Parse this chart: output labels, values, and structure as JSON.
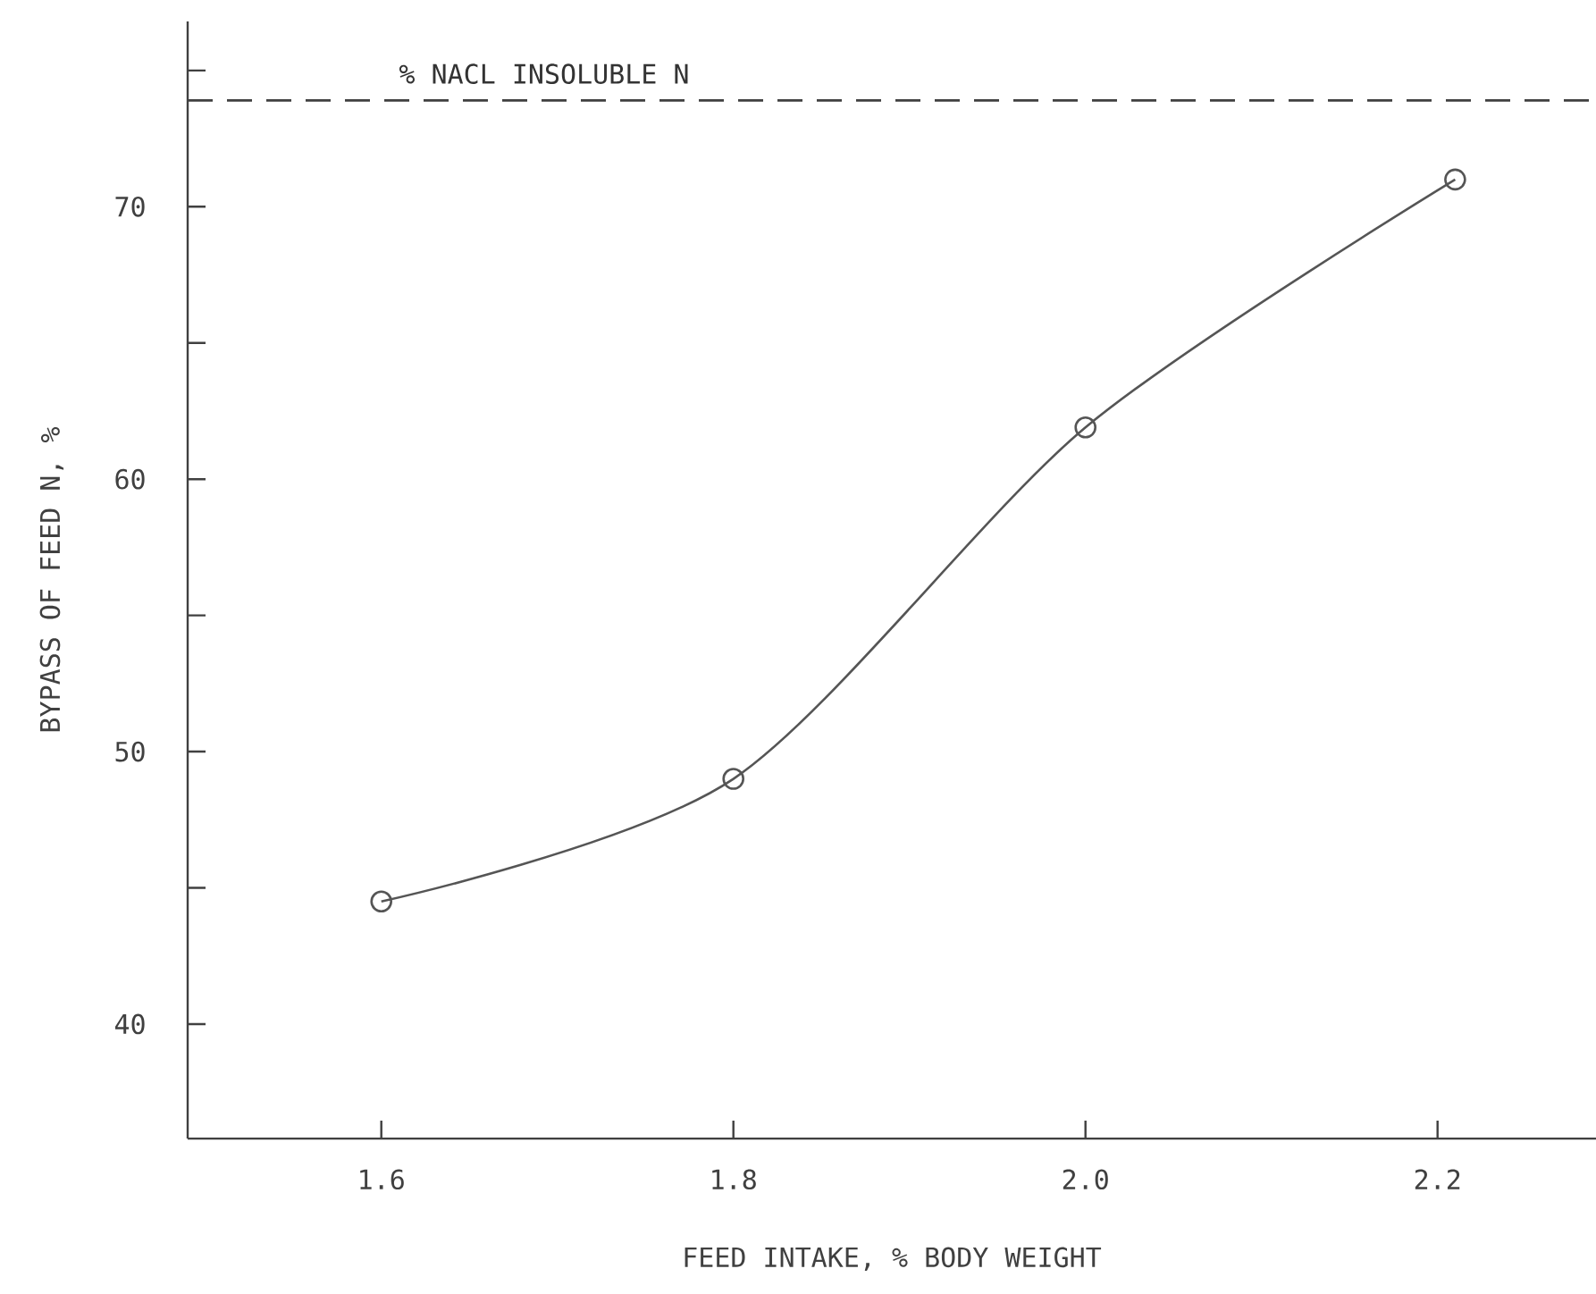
{
  "chart_data": {
    "type": "line",
    "xlabel": "FEED INTAKE, % BODY WEIGHT",
    "ylabel": "BYPASS OF FEED N, %",
    "x": [
      1.6,
      1.8,
      2.0,
      2.21
    ],
    "series": [
      {
        "color": "#555555",
        "values": [
          44.5,
          49.0,
          61.9,
          71.0
        ]
      }
    ],
    "xlim": [
      1.49,
      2.29
    ],
    "ylim": [
      35.8,
      76.8
    ],
    "xticks": [
      1.6,
      1.8,
      {
        "value": 2.0,
        "label": "2.0"
      },
      2.2
    ],
    "yticks": [
      40,
      {
        "value": 45,
        "label": null
      },
      50,
      {
        "value": 55,
        "label": null
      },
      60,
      {
        "value": 65,
        "label": null
      },
      70,
      {
        "value": 75,
        "label": null
      }
    ],
    "ref_lines": [
      {
        "axis": "y",
        "value": 73.9,
        "label": "% NACL INSOLUBLE N",
        "line_style": "dashed"
      }
    ],
    "marker": "circle",
    "line_style": "solid"
  }
}
